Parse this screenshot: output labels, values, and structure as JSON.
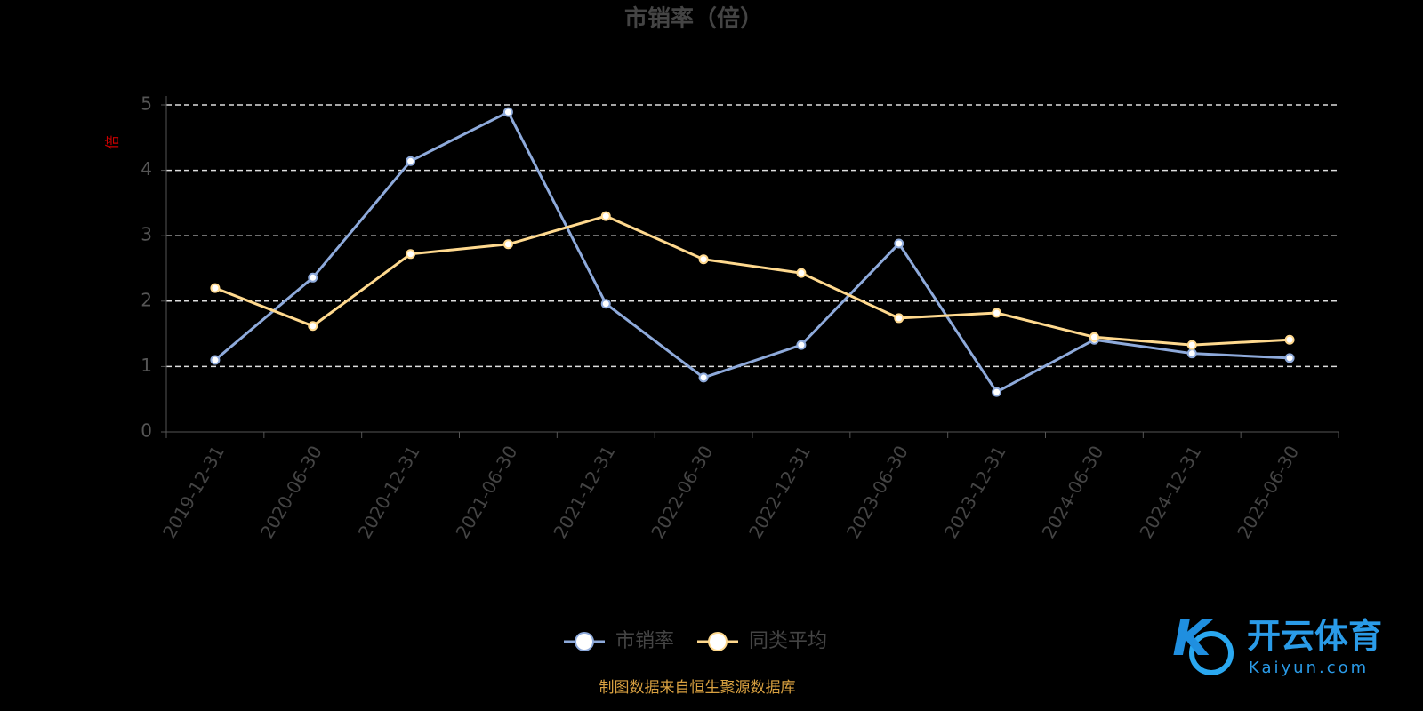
{
  "chart_data": {
    "type": "line",
    "title": "市销率（倍）",
    "y_label": "倍",
    "categories": [
      "2019-12-31",
      "2020-06-30",
      "2020-12-31",
      "2021-06-30",
      "2021-12-31",
      "2022-06-30",
      "2022-12-31",
      "2023-06-30",
      "2023-12-31",
      "2024-06-30",
      "2024-12-31",
      "2025-06-30"
    ],
    "series": [
      {
        "name": "市销率",
        "color": "#8eaadb",
        "values": [
          1.1,
          2.36,
          4.14,
          4.89,
          1.96,
          0.83,
          1.33,
          2.88,
          0.61,
          1.41,
          1.2,
          1.13
        ]
      },
      {
        "name": "同类平均",
        "color": "#ffd98e",
        "values": [
          2.2,
          1.62,
          2.72,
          2.87,
          3.3,
          2.64,
          2.43,
          1.74,
          1.82,
          1.45,
          1.33,
          1.41
        ]
      }
    ],
    "ylim": [
      0,
      5
    ],
    "yticks": [
      0,
      1,
      2,
      3,
      4,
      5
    ],
    "grid": true,
    "legend": "bottom",
    "source": "制图数据来自恒生聚源数据库",
    "watermark": {
      "title": "开云体育",
      "subtitle": "Kaiyun.com"
    }
  }
}
